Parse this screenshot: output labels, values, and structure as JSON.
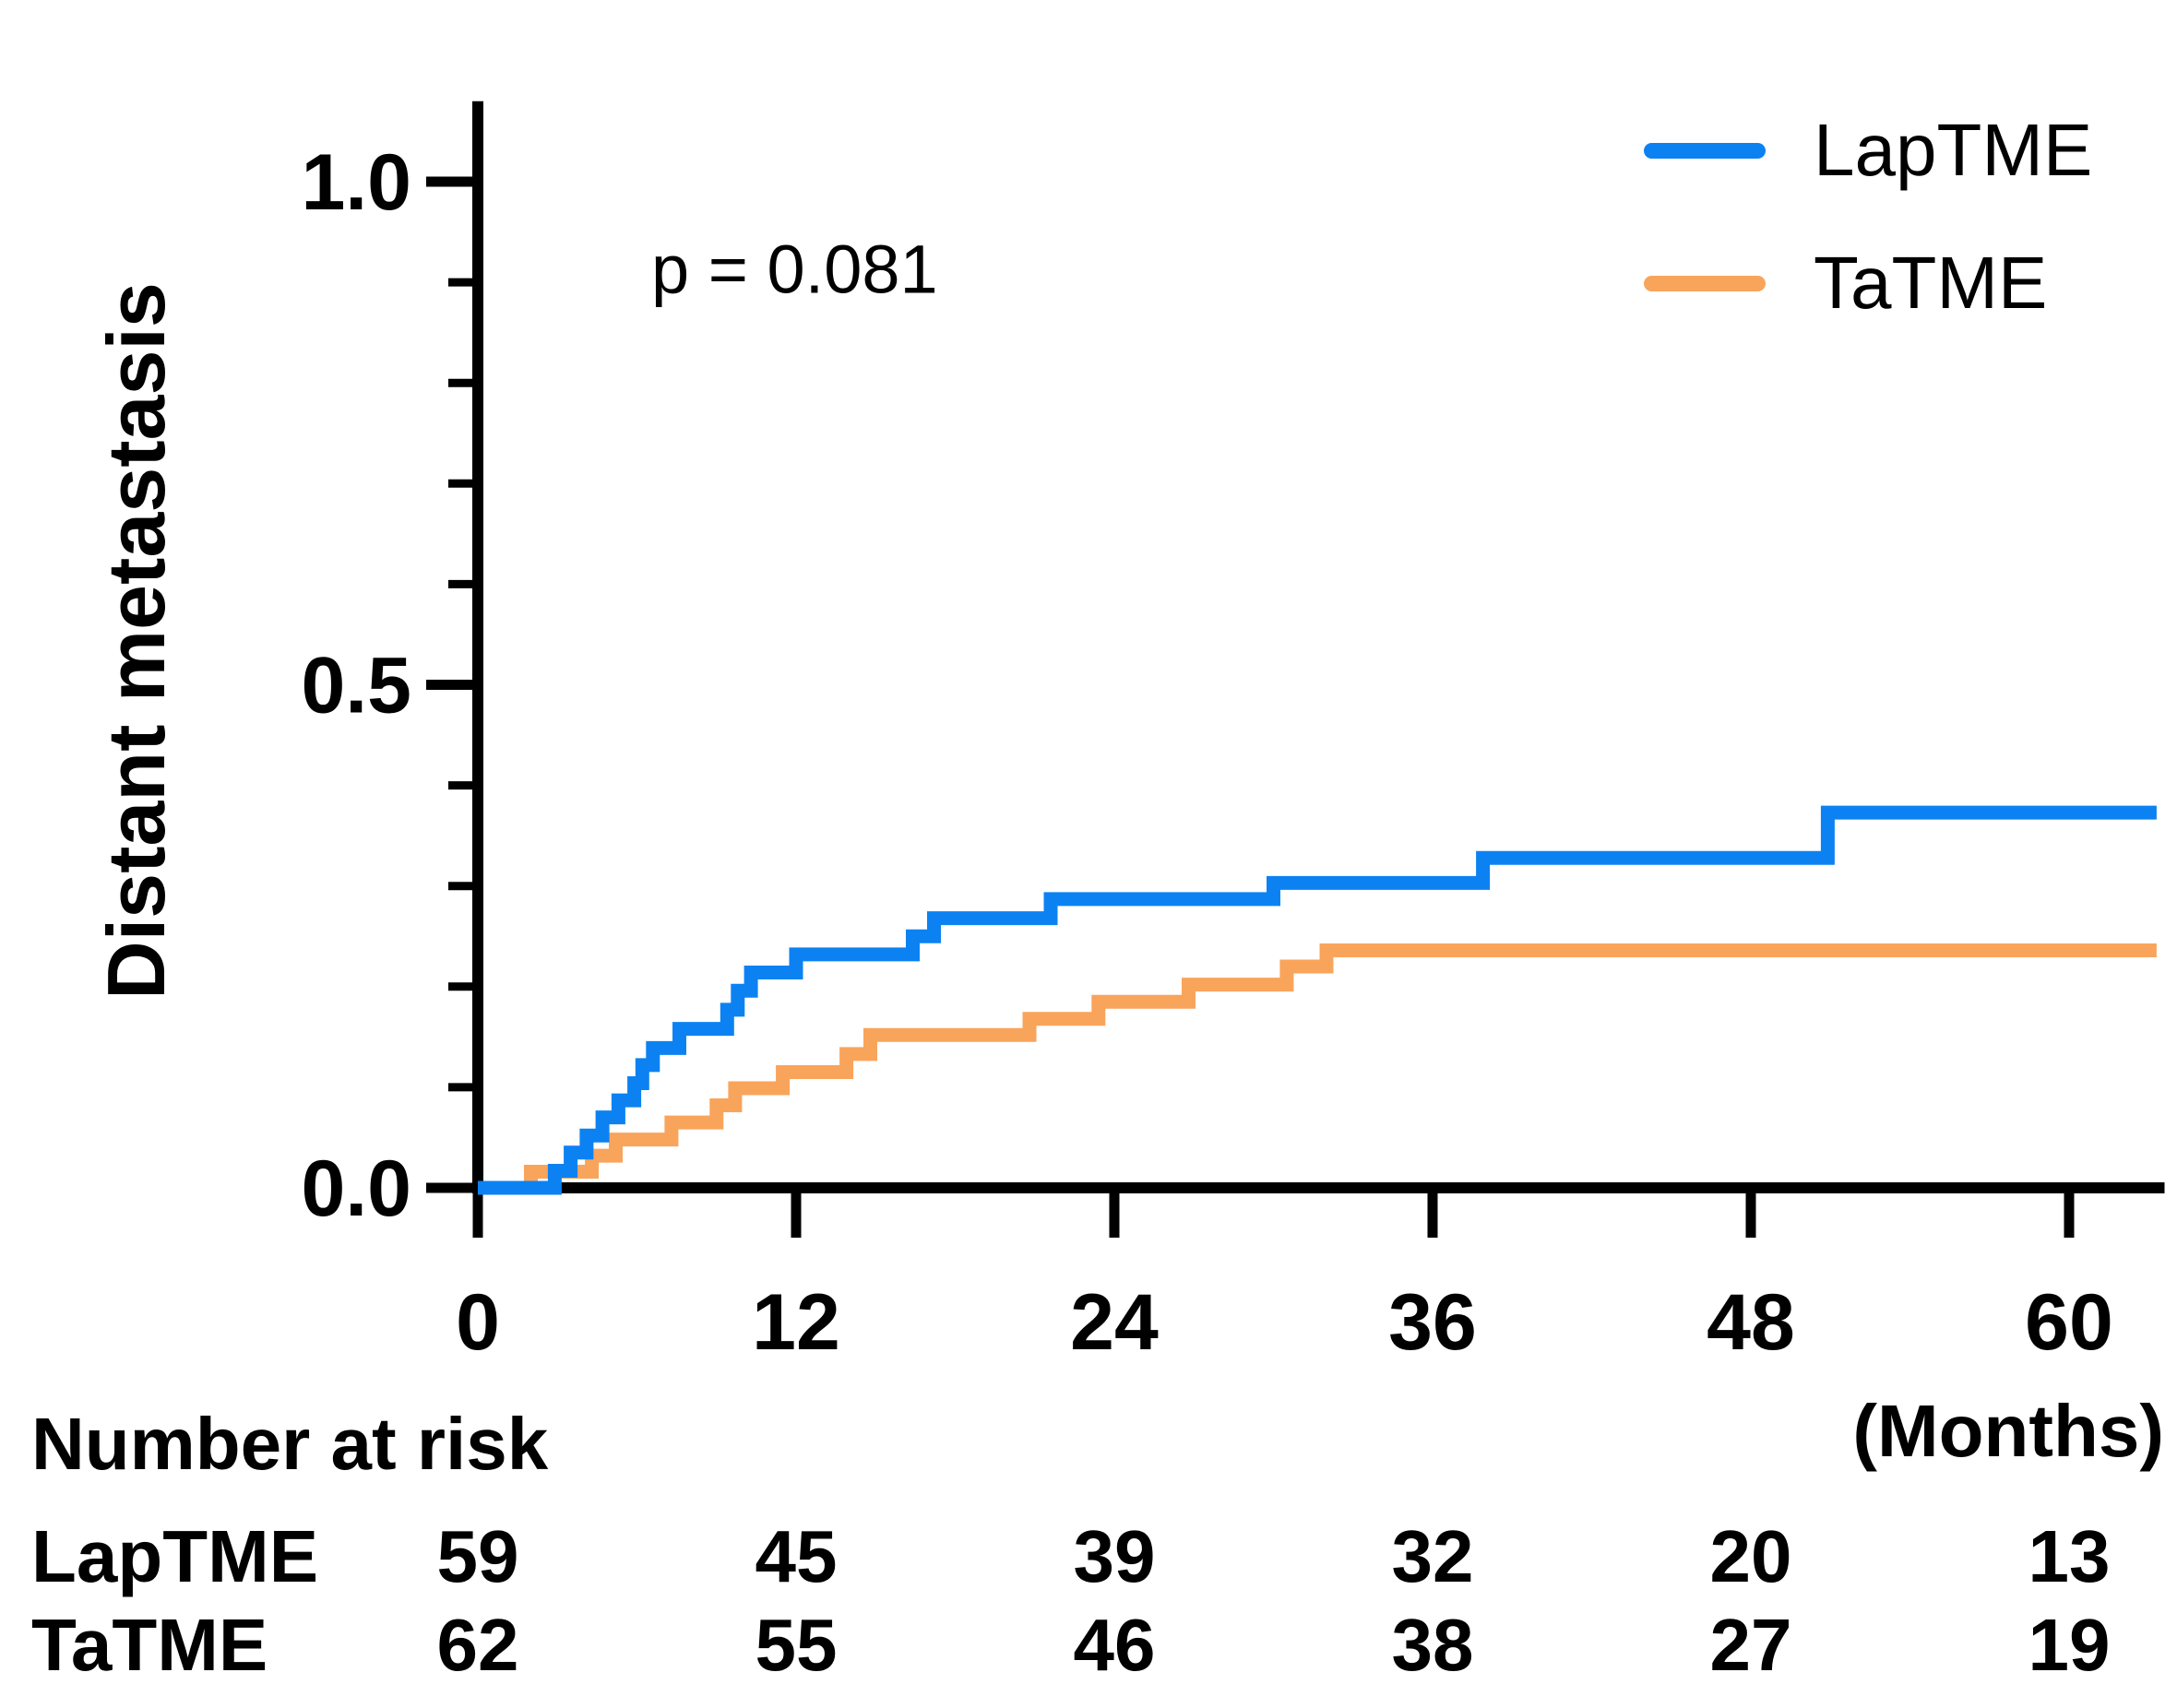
{
  "chart_data": {
    "type": "line",
    "subtype": "kaplan-meier-step",
    "title": "",
    "ylabel": "Distant metastasis",
    "x_axis_unit_label": "(Months)",
    "p_value_text": "p = 0.081",
    "x_ticks": [
      0,
      12,
      24,
      36,
      48,
      60
    ],
    "y_ticks": [
      {
        "value": 0.0,
        "label": "0.0"
      },
      {
        "value": 0.5,
        "label": "0.5"
      },
      {
        "value": 1.0,
        "label": "1.0"
      }
    ],
    "y_minor_ticks": [
      0.1,
      0.2,
      0.3,
      0.4,
      0.6,
      0.7,
      0.8,
      0.9
    ],
    "xlim": [
      0,
      63.6
    ],
    "ylim": [
      0,
      1.08
    ],
    "grid": false,
    "legend_position": "top-right",
    "axis_color": "#000000",
    "series": [
      {
        "name": "LapTME",
        "color": "#0c82f2",
        "points": [
          [
            0,
            0
          ],
          [
            2.9,
            0
          ],
          [
            2.9,
            0.017
          ],
          [
            3.5,
            0.017
          ],
          [
            3.5,
            0.035
          ],
          [
            4.1,
            0.035
          ],
          [
            4.1,
            0.052
          ],
          [
            4.7,
            0.052
          ],
          [
            4.7,
            0.07
          ],
          [
            5.3,
            0.07
          ],
          [
            5.3,
            0.087
          ],
          [
            5.9,
            0.087
          ],
          [
            5.9,
            0.104
          ],
          [
            6.2,
            0.104
          ],
          [
            6.2,
            0.122
          ],
          [
            6.6,
            0.122
          ],
          [
            6.6,
            0.139
          ],
          [
            7.6,
            0.139
          ],
          [
            7.6,
            0.158
          ],
          [
            9.4,
            0.158
          ],
          [
            9.4,
            0.177
          ],
          [
            9.8,
            0.177
          ],
          [
            9.8,
            0.196
          ],
          [
            10.3,
            0.196
          ],
          [
            10.3,
            0.214
          ],
          [
            12.0,
            0.214
          ],
          [
            12.0,
            0.232
          ],
          [
            16.4,
            0.232
          ],
          [
            16.4,
            0.25
          ],
          [
            17.2,
            0.25
          ],
          [
            17.2,
            0.268
          ],
          [
            21.6,
            0.268
          ],
          [
            21.6,
            0.287
          ],
          [
            30.0,
            0.287
          ],
          [
            30.0,
            0.303
          ],
          [
            37.9,
            0.303
          ],
          [
            37.9,
            0.328
          ],
          [
            50.9,
            0.328
          ],
          [
            50.9,
            0.373
          ],
          [
            63.3,
            0.373
          ]
        ]
      },
      {
        "name": "TaTME",
        "color": "#f9a45b",
        "points": [
          [
            0,
            0
          ],
          [
            2.0,
            0
          ],
          [
            2.0,
            0.016
          ],
          [
            4.3,
            0.016
          ],
          [
            4.3,
            0.032
          ],
          [
            5.2,
            0.032
          ],
          [
            5.2,
            0.048
          ],
          [
            7.3,
            0.048
          ],
          [
            7.3,
            0.065
          ],
          [
            9.0,
            0.065
          ],
          [
            9.0,
            0.082
          ],
          [
            9.7,
            0.082
          ],
          [
            9.7,
            0.099
          ],
          [
            11.5,
            0.099
          ],
          [
            11.5,
            0.115
          ],
          [
            13.9,
            0.115
          ],
          [
            13.9,
            0.133
          ],
          [
            14.8,
            0.133
          ],
          [
            14.8,
            0.152
          ],
          [
            20.8,
            0.152
          ],
          [
            20.8,
            0.168
          ],
          [
            23.4,
            0.168
          ],
          [
            23.4,
            0.185
          ],
          [
            26.8,
            0.185
          ],
          [
            26.8,
            0.202
          ],
          [
            30.5,
            0.202
          ],
          [
            30.5,
            0.22
          ],
          [
            32.0,
            0.22
          ],
          [
            32.0,
            0.236
          ],
          [
            63.3,
            0.236
          ]
        ]
      }
    ],
    "number_at_risk": {
      "heading": "Number at risk",
      "columns_months": [
        0,
        12,
        24,
        36,
        48,
        60
      ],
      "rows": [
        {
          "name": "LapTME",
          "counts": [
            59,
            45,
            39,
            32,
            20,
            13
          ]
        },
        {
          "name": "TaTME",
          "counts": [
            62,
            55,
            46,
            38,
            27,
            19
          ]
        }
      ]
    }
  }
}
